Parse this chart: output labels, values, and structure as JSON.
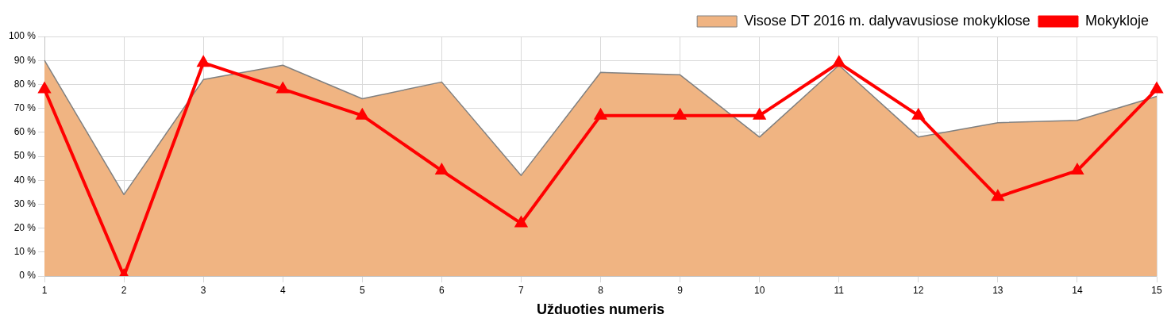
{
  "chart_data": {
    "type": "area",
    "xlabel": "Užduoties numeris",
    "categories": [
      "1",
      "2",
      "3",
      "4",
      "5",
      "6",
      "7",
      "8",
      "9",
      "10",
      "11",
      "12",
      "13",
      "14",
      "15"
    ],
    "series": [
      {
        "name": "Visose DT 2016 m. dalyvavusiose mokyklose",
        "type": "area",
        "color": "#f0b482",
        "values": [
          90,
          34,
          82,
          88,
          74,
          81,
          42,
          85,
          84,
          58,
          88,
          58,
          64,
          65,
          75
        ]
      },
      {
        "name": "Mokykloje",
        "type": "line",
        "color": "#ff0000",
        "marker": "triangle",
        "values": [
          78,
          0,
          89,
          78,
          67,
          44,
          22,
          67,
          67,
          67,
          89,
          67,
          33,
          44,
          78
        ]
      }
    ],
    "ylim": [
      0,
      100
    ],
    "yticks": [
      {
        "value": 0,
        "label": "0 %"
      },
      {
        "value": 10,
        "label": "10 %"
      },
      {
        "value": 20,
        "label": "20 %"
      },
      {
        "value": 30,
        "label": "30 %"
      },
      {
        "value": 40,
        "label": "40 %"
      },
      {
        "value": 50,
        "label": "50 %"
      },
      {
        "value": 60,
        "label": "60 %"
      },
      {
        "value": 70,
        "label": "70 %"
      },
      {
        "value": 80,
        "label": "80 %"
      },
      {
        "value": 90,
        "label": "90 %"
      },
      {
        "value": 100,
        "label": "100 %"
      }
    ],
    "grid": true,
    "legend": "top right"
  }
}
